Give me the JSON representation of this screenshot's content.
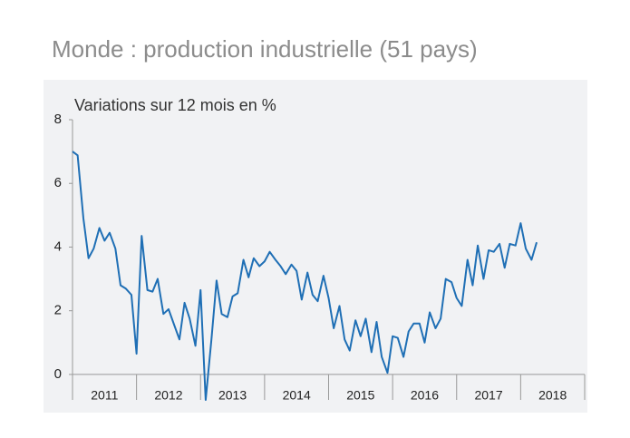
{
  "chart_data": {
    "type": "line",
    "title": "Monde : production industrielle (51 pays)",
    "subtitle": "Variations sur 12 mois en %",
    "x": [
      2011.0,
      2011.08,
      2011.17,
      2011.25,
      2011.33,
      2011.42,
      2011.5,
      2011.58,
      2011.67,
      2011.75,
      2011.83,
      2011.92,
      2012.0,
      2012.08,
      2012.17,
      2012.25,
      2012.33,
      2012.42,
      2012.5,
      2012.58,
      2012.67,
      2012.75,
      2012.83,
      2012.92,
      2013.0,
      2013.08,
      2013.17,
      2013.25,
      2013.33,
      2013.42,
      2013.5,
      2013.58,
      2013.67,
      2013.75,
      2013.83,
      2013.92,
      2014.0,
      2014.08,
      2014.17,
      2014.25,
      2014.33,
      2014.42,
      2014.5,
      2014.58,
      2014.67,
      2014.75,
      2014.83,
      2014.92,
      2015.0,
      2015.08,
      2015.17,
      2015.25,
      2015.33,
      2015.42,
      2015.5,
      2015.58,
      2015.67,
      2015.75,
      2015.83,
      2015.92,
      2016.0,
      2016.08,
      2016.17,
      2016.25,
      2016.33,
      2016.42,
      2016.5,
      2016.58,
      2016.67,
      2016.75,
      2016.83,
      2016.92,
      2017.0,
      2017.08,
      2017.17,
      2017.25,
      2017.33,
      2017.42,
      2017.5,
      2017.58,
      2017.67,
      2017.75,
      2017.83,
      2017.92,
      2018.0,
      2018.08,
      2018.17,
      2018.25
    ],
    "series": [
      {
        "color": "#1f6fb5",
        "values": [
          7.0,
          6.88,
          4.9,
          3.65,
          3.95,
          4.6,
          4.2,
          4.45,
          3.95,
          2.8,
          2.7,
          2.5,
          0.65,
          4.35,
          2.65,
          2.6,
          3.0,
          1.9,
          2.05,
          1.6,
          1.1,
          2.25,
          1.75,
          0.9,
          2.65,
          -0.8,
          1.1,
          2.95,
          1.9,
          1.8,
          2.45,
          2.55,
          3.6,
          3.05,
          3.65,
          3.4,
          3.55,
          3.85,
          3.6,
          3.4,
          3.15,
          3.45,
          3.25,
          2.35,
          3.2,
          2.5,
          2.3,
          3.1,
          2.4,
          1.45,
          2.15,
          1.1,
          0.75,
          1.7,
          1.2,
          1.75,
          0.7,
          1.65,
          0.55,
          0.05,
          1.2,
          1.15,
          0.55,
          1.35,
          1.6,
          1.6,
          1.0,
          1.95,
          1.45,
          1.75,
          3.0,
          2.9,
          2.4,
          2.15,
          3.6,
          2.8,
          4.05,
          3.0,
          3.9,
          3.85,
          4.1,
          3.35,
          4.1,
          4.05,
          4.75,
          3.95,
          3.6,
          4.15
        ]
      }
    ],
    "xlim": [
      2011,
      2019
    ],
    "xticks": [
      2011,
      2012,
      2013,
      2014,
      2015,
      2016,
      2017,
      2018,
      2019
    ],
    "xlabels": [
      {
        "value": 2011.5,
        "label": "2011"
      },
      {
        "value": 2012.5,
        "label": "2012"
      },
      {
        "value": 2013.5,
        "label": "2013"
      },
      {
        "value": 2014.5,
        "label": "2014"
      },
      {
        "value": 2015.5,
        "label": "2015"
      },
      {
        "value": 2016.5,
        "label": "2016"
      },
      {
        "value": 2017.5,
        "label": "2017"
      },
      {
        "value": 2018.5,
        "label": "2018"
      }
    ],
    "ylim": [
      -0.8,
      8
    ],
    "yticks": [
      0,
      2,
      4,
      6,
      8
    ],
    "grid": false
  }
}
